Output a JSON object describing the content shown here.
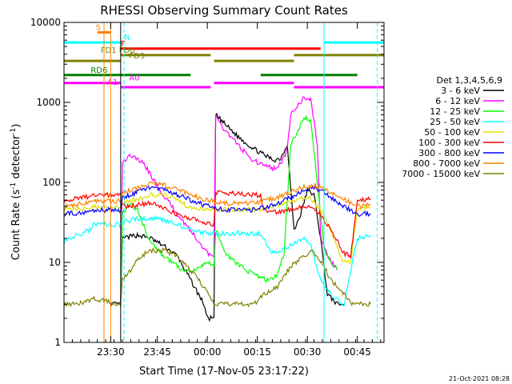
{
  "chart_data": {
    "type": "line",
    "title": "RHESSI Observing Summary Count Rates",
    "xlabel": "Start Time (17-Nov-05 23:17:22)",
    "ylabel": "Count Rate (s",
    "ylabel_exp1": "-1",
    "ylabel_mid": " detector",
    "ylabel_exp2": "-1",
    "ylabel_end": ")",
    "x_start": "23:17",
    "xlim": [
      0,
      96
    ],
    "ylim": [
      1,
      10000
    ],
    "y_scale": "log",
    "x_ticks": [
      {
        "t": 14,
        "label": "23:30"
      },
      {
        "t": 28,
        "label": "23:45"
      },
      {
        "t": 43,
        "label": "00:00"
      },
      {
        "t": 58,
        "label": "00:15"
      },
      {
        "t": 73,
        "label": "00:30"
      },
      {
        "t": 88,
        "label": "00:45"
      }
    ],
    "y_ticks": [
      {
        "v": 1,
        "label": "1"
      },
      {
        "v": 10,
        "label": "10"
      },
      {
        "v": 100,
        "label": "100"
      },
      {
        "v": 1000,
        "label": "1000"
      },
      {
        "v": 10000,
        "label": "10000"
      }
    ],
    "legend_title": "Det 1,3,4,5,6,9",
    "legend_position": "right",
    "series": [
      {
        "name": "3 - 6 keV",
        "color": "#000000",
        "points": [
          [
            14,
            3
          ],
          [
            17,
            3
          ],
          [
            17.5,
            20
          ],
          [
            22,
            22
          ],
          [
            26,
            20
          ],
          [
            30,
            16
          ],
          [
            34,
            12
          ],
          [
            38,
            6
          ],
          [
            42,
            3
          ],
          [
            43,
            2
          ],
          [
            45,
            2
          ],
          [
            45.5,
            700
          ],
          [
            48,
            550
          ],
          [
            52,
            380
          ],
          [
            56,
            280
          ],
          [
            60,
            220
          ],
          [
            63,
            190
          ],
          [
            65,
            200
          ],
          [
            67,
            300
          ],
          [
            69,
            25
          ],
          [
            71,
            40
          ],
          [
            73,
            80
          ],
          [
            75,
            70
          ],
          [
            77,
            20
          ],
          [
            79,
            4
          ],
          [
            82,
            3
          ],
          [
            84,
            3
          ]
        ]
      },
      {
        "name": "6 - 12 keV",
        "color": "#ff00ff",
        "points": [
          [
            17,
            3
          ],
          [
            17.5,
            180
          ],
          [
            20,
            220
          ],
          [
            24,
            170
          ],
          [
            28,
            90
          ],
          [
            31,
            60
          ],
          [
            34,
            40
          ],
          [
            38,
            25
          ],
          [
            42,
            15
          ],
          [
            44,
            12
          ],
          [
            45,
            12
          ],
          [
            45.5,
            650
          ],
          [
            48,
            470
          ],
          [
            52,
            300
          ],
          [
            56,
            200
          ],
          [
            60,
            160
          ],
          [
            63,
            150
          ],
          [
            65,
            170
          ],
          [
            67,
            260
          ],
          [
            68,
            700
          ],
          [
            70,
            900
          ],
          [
            72,
            1150
          ],
          [
            74,
            1100
          ],
          [
            76,
            300
          ],
          [
            77,
            20
          ],
          [
            79,
            12
          ],
          [
            82,
            8
          ]
        ]
      },
      {
        "name": "12 - 25 keV",
        "color": "#00ff00",
        "points": [
          [
            17,
            3
          ],
          [
            17.5,
            40
          ],
          [
            20,
            55
          ],
          [
            22,
            45
          ],
          [
            25,
            22
          ],
          [
            28,
            14
          ],
          [
            31,
            11
          ],
          [
            33,
            10
          ],
          [
            35,
            8
          ],
          [
            37,
            8
          ],
          [
            39,
            8
          ],
          [
            41,
            9
          ],
          [
            43,
            10
          ],
          [
            45,
            9
          ],
          [
            45.5,
            25
          ],
          [
            49,
            12
          ],
          [
            53,
            9
          ],
          [
            57,
            7
          ],
          [
            61,
            6
          ],
          [
            64,
            7
          ],
          [
            66,
            13
          ],
          [
            68,
            300
          ],
          [
            70,
            420
          ],
          [
            72,
            650
          ],
          [
            74,
            600
          ],
          [
            76,
            100
          ],
          [
            78,
            15
          ],
          [
            80,
            10
          ],
          [
            82,
            8
          ]
        ]
      },
      {
        "name": "25 - 50 keV",
        "color": "#00ffff",
        "points": [
          [
            0,
            18
          ],
          [
            2,
            20
          ],
          [
            4,
            22
          ],
          [
            6,
            24
          ],
          [
            8,
            26
          ],
          [
            9,
            30
          ],
          [
            17,
            30
          ],
          [
            17.5,
            32
          ],
          [
            22,
            35
          ],
          [
            26,
            36
          ],
          [
            30,
            34
          ],
          [
            34,
            30
          ],
          [
            37,
            26
          ],
          [
            40,
            24
          ],
          [
            43,
            23
          ],
          [
            47,
            23
          ],
          [
            51,
            23
          ],
          [
            55,
            23
          ],
          [
            59,
            23
          ],
          [
            62,
            14
          ],
          [
            64,
            13
          ],
          [
            66,
            15
          ],
          [
            68,
            16
          ],
          [
            70,
            18
          ],
          [
            72,
            20
          ],
          [
            74,
            16
          ],
          [
            76,
            8
          ],
          [
            78,
            5
          ],
          [
            80,
            4
          ],
          [
            84,
            3
          ],
          [
            88,
            20
          ],
          [
            90,
            21
          ],
          [
            92,
            22
          ]
        ]
      },
      {
        "name": "50 - 100 keV",
        "color": "#e0e000",
        "points": [
          [
            0,
            45
          ],
          [
            3,
            46
          ],
          [
            6,
            47
          ],
          [
            9,
            50
          ],
          [
            17,
            50
          ],
          [
            17.5,
            55
          ],
          [
            22,
            62
          ],
          [
            26,
            70
          ],
          [
            30,
            70
          ],
          [
            34,
            62
          ],
          [
            37,
            50
          ],
          [
            41,
            47
          ],
          [
            45,
            46
          ],
          [
            49,
            46
          ],
          [
            53,
            46
          ],
          [
            57,
            46
          ],
          [
            60,
            47
          ],
          [
            63,
            50
          ],
          [
            66,
            55
          ],
          [
            70,
            62
          ],
          [
            74,
            65
          ],
          [
            77,
            45
          ],
          [
            80,
            25
          ],
          [
            82,
            15
          ],
          [
            84,
            10
          ],
          [
            86,
            10
          ],
          [
            88,
            45
          ],
          [
            92,
            48
          ]
        ]
      },
      {
        "name": "100 - 300 keV",
        "color": "#ff0000",
        "points": [
          [
            0,
            60
          ],
          [
            3,
            62
          ],
          [
            6,
            65
          ],
          [
            9,
            70
          ],
          [
            17,
            70
          ],
          [
            17.5,
            50
          ],
          [
            22,
            52
          ],
          [
            26,
            55
          ],
          [
            30,
            48
          ],
          [
            34,
            40
          ],
          [
            38,
            35
          ],
          [
            42,
            32
          ],
          [
            44,
            30
          ],
          [
            45,
            30
          ],
          [
            45.5,
            75
          ],
          [
            49,
            73
          ],
          [
            53,
            72
          ],
          [
            57,
            70
          ],
          [
            59,
            70
          ],
          [
            60,
            45
          ],
          [
            63,
            42
          ],
          [
            66,
            44
          ],
          [
            70,
            48
          ],
          [
            74,
            50
          ],
          [
            77,
            40
          ],
          [
            80,
            25
          ],
          [
            82,
            18
          ],
          [
            84,
            13
          ],
          [
            86,
            12
          ],
          [
            88,
            60
          ],
          [
            92,
            62
          ]
        ]
      },
      {
        "name": "300 - 800 keV",
        "color": "#0000ff",
        "points": [
          [
            0,
            40
          ],
          [
            3,
            41
          ],
          [
            6,
            42
          ],
          [
            9,
            45
          ],
          [
            17,
            45
          ],
          [
            17.5,
            65
          ],
          [
            22,
            75
          ],
          [
            26,
            88
          ],
          [
            30,
            82
          ],
          [
            34,
            70
          ],
          [
            38,
            60
          ],
          [
            42,
            52
          ],
          [
            45,
            48
          ],
          [
            48,
            46
          ],
          [
            52,
            45
          ],
          [
            56,
            45
          ],
          [
            60,
            48
          ],
          [
            64,
            55
          ],
          [
            68,
            65
          ],
          [
            72,
            80
          ],
          [
            75,
            85
          ],
          [
            78,
            75
          ],
          [
            81,
            60
          ],
          [
            84,
            50
          ],
          [
            86,
            45
          ],
          [
            88,
            40
          ],
          [
            92,
            41
          ]
        ]
      },
      {
        "name": "800 - 7000 keV",
        "color": "#ff8000",
        "points": [
          [
            0,
            50
          ],
          [
            3,
            52
          ],
          [
            6,
            54
          ],
          [
            9,
            58
          ],
          [
            17,
            58
          ],
          [
            17.5,
            75
          ],
          [
            22,
            85
          ],
          [
            26,
            95
          ],
          [
            30,
            92
          ],
          [
            34,
            82
          ],
          [
            38,
            70
          ],
          [
            42,
            62
          ],
          [
            45,
            58
          ],
          [
            48,
            55
          ],
          [
            52,
            55
          ],
          [
            56,
            55
          ],
          [
            60,
            58
          ],
          [
            64,
            65
          ],
          [
            68,
            75
          ],
          [
            72,
            88
          ],
          [
            75,
            92
          ],
          [
            78,
            85
          ],
          [
            81,
            72
          ],
          [
            84,
            62
          ],
          [
            86,
            55
          ],
          [
            88,
            50
          ],
          [
            92,
            52
          ]
        ]
      },
      {
        "name": "7000 - 15000 keV",
        "color": "#808000",
        "points": [
          [
            0,
            3
          ],
          [
            4,
            3
          ],
          [
            9,
            3.5
          ],
          [
            17,
            3
          ],
          [
            17.5,
            6
          ],
          [
            20,
            8
          ],
          [
            23,
            12
          ],
          [
            26,
            14
          ],
          [
            30,
            14
          ],
          [
            34,
            12
          ],
          [
            38,
            8
          ],
          [
            42,
            5
          ],
          [
            45,
            3
          ],
          [
            49,
            3
          ],
          [
            53,
            3
          ],
          [
            57,
            3
          ],
          [
            60,
            4
          ],
          [
            64,
            5
          ],
          [
            68,
            9
          ],
          [
            72,
            12
          ],
          [
            74,
            14
          ],
          [
            76,
            12
          ],
          [
            78,
            9
          ],
          [
            80,
            6
          ],
          [
            82,
            5
          ],
          [
            84,
            4
          ],
          [
            86,
            3
          ],
          [
            88,
            3
          ],
          [
            92,
            3
          ]
        ]
      }
    ],
    "state_bars": [
      {
        "label": "S",
        "color": "#ff8000",
        "y": 7500,
        "t0": 10,
        "t1": 14,
        "label_at": 9.5
      },
      {
        "label": "N",
        "color": "#00ffff",
        "y": 5600,
        "t0": 0,
        "t1": 17.5,
        "t2": 78,
        "t3": 96,
        "label_at": 18
      },
      {
        "label": "F",
        "color": "#ff0000",
        "y": 4700,
        "t0": 17,
        "t1": 77,
        "label_at": 17
      },
      {
        "label": "FD1",
        "color": "#808000",
        "y": 3900,
        "t0": 17,
        "t1": 44,
        "label_at": 11
      },
      {
        "label": "FD3",
        "color": "#808000",
        "y": 3300,
        "t0": 0,
        "t1": 17,
        "t2": 45,
        "t3": 69,
        "label_at": 19.5
      },
      {
        "label": "FD0",
        "color": "#808000",
        "y": 3900,
        "t0": 69,
        "t1": 96,
        "label_at": 16.5
      },
      {
        "label": "RD6",
        "color": "#008000",
        "y": 2200,
        "t0": 0,
        "t1": 38,
        "t2": 59,
        "t3": 88,
        "label_at": 8
      },
      {
        "label": "A0",
        "color": "#ff00ff",
        "y": 1750,
        "t0": 0,
        "t1": 17,
        "t2": 45,
        "t3": 69,
        "label_at": 19.5
      },
      {
        "label": "A1",
        "color": "#ff00ff",
        "y": 1550,
        "t0": 17,
        "t1": 44,
        "t2": 69,
        "t3": 96,
        "label_at": 13
      }
    ],
    "vlines": [
      {
        "t": 0,
        "color": "#00ffff",
        "dash": false
      },
      {
        "t": 12,
        "color": "#ff8000",
        "dash": false
      },
      {
        "t": 14,
        "color": "#ff8000",
        "dash": false
      },
      {
        "t": 17,
        "color": "#000000",
        "dash": false
      },
      {
        "t": 18,
        "color": "#00ffff",
        "dash": true
      },
      {
        "t": 78,
        "color": "#00ffff",
        "dash": false
      },
      {
        "t": 94,
        "color": "#00ffff",
        "dash": true
      }
    ]
  },
  "footer_timestamp": "21-Oct-2021 08:28"
}
